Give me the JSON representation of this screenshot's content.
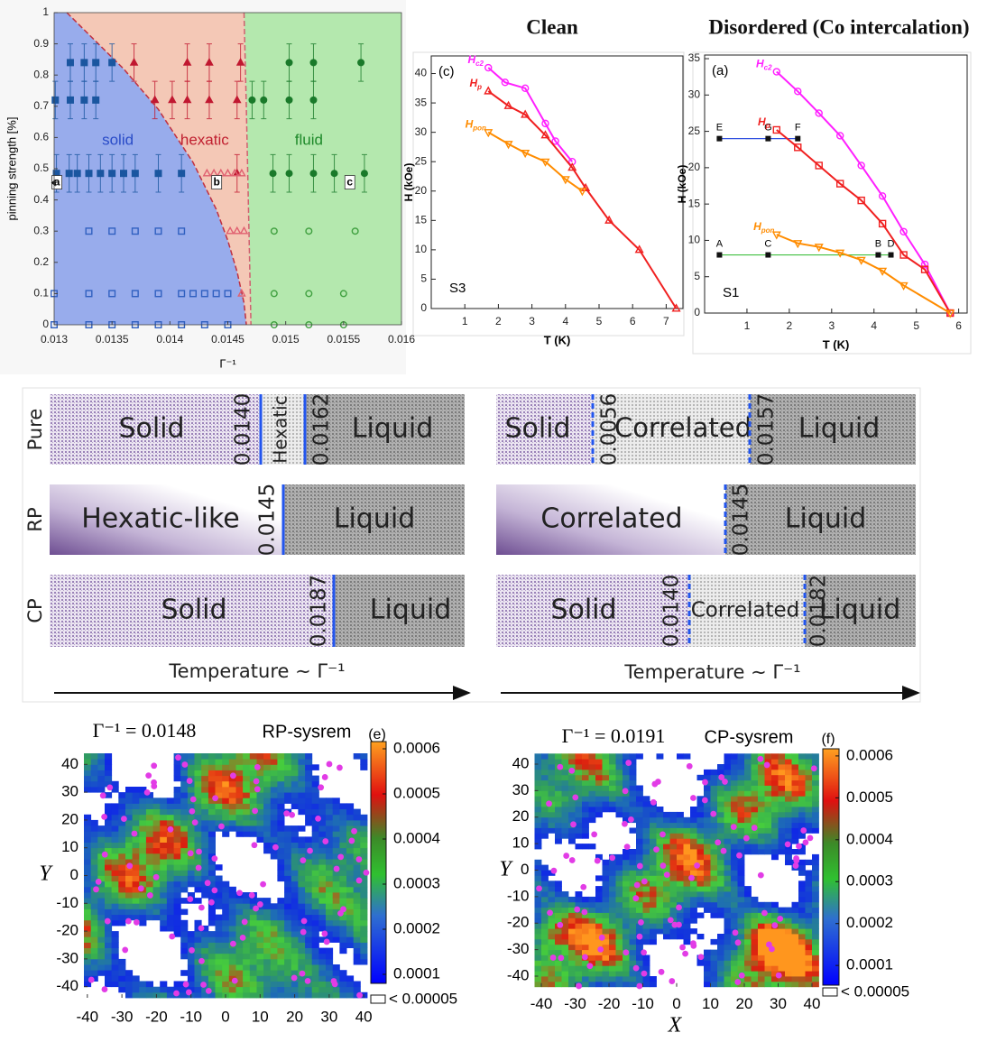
{
  "chart_data": [
    {
      "type": "scatter",
      "xlabel": "Γ⁻¹",
      "ylabel": "pinning strength [%]",
      "xlim": [
        0.013,
        0.016
      ],
      "ylim": [
        0,
        1
      ],
      "xticks": [
        0.013,
        0.0135,
        0.014,
        0.0145,
        0.015,
        0.0155,
        0.016
      ],
      "yticks": [
        0,
        0.1,
        0.2,
        0.3,
        0.4,
        0.5,
        0.6,
        0.7,
        0.8,
        0.9,
        1
      ],
      "regions": [
        {
          "label": "solid",
          "color": "#98acec",
          "label_color": "#2a4cc8"
        },
        {
          "label": "hexatic",
          "color": "#f4c8b6",
          "label_color": "#c02030"
        },
        {
          "label": "fluid",
          "color": "#b4e8ae",
          "label_color": "#1e8a2a"
        }
      ],
      "boundaries": [
        {
          "color": "#c03040",
          "x": [
            0.01311,
            0.0133,
            0.0136,
            0.0139,
            0.0142,
            0.0144,
            0.0145,
            0.01458,
            0.01464,
            0.01466
          ],
          "y": [
            1,
            0.93,
            0.82,
            0.69,
            0.52,
            0.37,
            0.27,
            0.17,
            0.07,
            0
          ]
        },
        {
          "color": "#d06070",
          "x": [
            0.01464,
            0.01466,
            0.01468,
            0.0147
          ],
          "y": [
            1,
            0.7,
            0.35,
            0
          ]
        }
      ],
      "series": [
        {
          "color": "#1a56a0",
          "marker": "square",
          "filled": true,
          "x": [
            0.01314,
            0.01326,
            0.01336,
            0.0135,
            0.01301,
            0.01314,
            0.01326,
            0.01336,
            0.01302,
            0.01313,
            0.0132,
            0.0133,
            0.0134,
            0.0135,
            0.0136,
            0.0137,
            0.0139,
            0.0141
          ],
          "values": [
            0.84,
            0.84,
            0.84,
            0.84,
            0.72,
            0.72,
            0.72,
            0.72,
            0.485,
            0.485,
            0.485,
            0.485,
            0.485,
            0.485,
            0.485,
            0.485,
            0.485,
            0.485
          ],
          "errors": [
            0.06,
            0.06,
            0.06,
            0.06,
            0.06,
            0.06,
            0.06,
            0.06,
            0.06,
            0.06,
            0.06,
            0.06,
            0.06,
            0.06,
            0.06,
            0.06,
            0.06,
            0.06
          ]
        },
        {
          "color": "#c01830",
          "marker": "triangle",
          "filled": true,
          "x": [
            0.01369,
            0.01415,
            0.01434,
            0.01461,
            0.01387,
            0.01402,
            0.01415,
            0.01434,
            0.01458,
            0.01458
          ],
          "values": [
            0.84,
            0.84,
            0.84,
            0.84,
            0.72,
            0.72,
            0.72,
            0.72,
            0.72,
            0.485
          ],
          "errors": [
            0.06,
            0.06,
            0.06,
            0.06,
            0.06,
            0.06,
            0.06,
            0.06,
            0.06,
            0.06
          ]
        },
        {
          "color": "#1a7a2a",
          "marker": "circle",
          "filled": true,
          "x": [
            0.01503,
            0.01524,
            0.01565,
            0.01471,
            0.01481,
            0.01503,
            0.01524,
            0.01489,
            0.01503,
            0.01524,
            0.01542,
            0.01568
          ],
          "values": [
            0.84,
            0.84,
            0.84,
            0.72,
            0.72,
            0.72,
            0.72,
            0.485,
            0.485,
            0.485,
            0.485,
            0.485
          ],
          "errors": [
            0.06,
            0.06,
            0.06,
            0.06,
            0.06,
            0.06,
            0.06,
            0.06,
            0.06,
            0.06,
            0.06,
            0.06
          ]
        },
        {
          "color": "#3060c0",
          "marker": "square",
          "filled": false,
          "x": [
            0.0133,
            0.0135,
            0.0137,
            0.0139,
            0.0141,
            0.013,
            0.0133,
            0.0135,
            0.0137,
            0.0139,
            0.0141,
            0.0142,
            0.0143,
            0.0144,
            0.0145,
            0.013,
            0.0133,
            0.0135,
            0.0137,
            0.0139,
            0.0141,
            0.0143,
            0.0145
          ],
          "values": [
            0.3,
            0.3,
            0.3,
            0.3,
            0.3,
            0.1,
            0.1,
            0.1,
            0.1,
            0.1,
            0.1,
            0.1,
            0.1,
            0.1,
            0.1,
            0,
            0,
            0,
            0,
            0,
            0,
            0,
            0
          ]
        },
        {
          "color": "#e06070",
          "marker": "triangle",
          "filled": false,
          "x": [
            0.01432,
            0.01438,
            0.01444,
            0.0145,
            0.01456,
            0.01462,
            0.01452,
            0.01458,
            0.01464,
            0.01462
          ],
          "values": [
            0.485,
            0.485,
            0.485,
            0.485,
            0.485,
            0.485,
            0.3,
            0.3,
            0.3,
            0.1
          ]
        },
        {
          "color": "#40a040",
          "marker": "circle",
          "filled": false,
          "x": [
            0.0149,
            0.0152,
            0.0156,
            0.0149,
            0.0152,
            0.0155,
            0.0149,
            0.0152,
            0.0155
          ],
          "values": [
            0.3,
            0.3,
            0.3,
            0.1,
            0.1,
            0.1,
            0,
            0,
            0
          ]
        }
      ],
      "annotations": [
        "a",
        "b",
        "c"
      ]
    },
    {
      "type": "line",
      "title": "Clean",
      "xlabel": "T (K)",
      "ylabel": "H (kOe)",
      "panel_label": "(c)",
      "sample_label": "S3",
      "xlim": [
        0,
        7.5
      ],
      "ylim": [
        0,
        43
      ],
      "xticks": [
        1,
        2,
        3,
        4,
        5,
        6,
        7
      ],
      "yticks": [
        0,
        5,
        10,
        15,
        20,
        25,
        30,
        35,
        40
      ],
      "series": [
        {
          "name": "Hc2",
          "color": "#ff20ff",
          "marker": "circle",
          "x": [
            1.7,
            2.2,
            2.8,
            3.4,
            3.7,
            4.2
          ],
          "values": [
            41,
            38.5,
            37.5,
            31.5,
            28.5,
            25
          ]
        },
        {
          "name": "Hp",
          "color": "#f02020",
          "marker": "triangle",
          "x": [
            1.7,
            2.3,
            2.8,
            3.4,
            4.2,
            4.6,
            5.3,
            6.2,
            7.3
          ],
          "values": [
            37,
            34.5,
            33,
            29.5,
            24,
            20.5,
            15,
            10,
            0
          ]
        },
        {
          "name": "Hpon",
          "color": "#ff8c00",
          "marker": "tridown",
          "x": [
            1.7,
            2.3,
            2.8,
            3.4,
            4.0,
            4.5
          ],
          "values": [
            30,
            28,
            26.5,
            25,
            22,
            20
          ]
        }
      ]
    },
    {
      "type": "line",
      "title": "Disordered (Co intercalation)",
      "xlabel": "T (K)",
      "ylabel": "H (kOe)",
      "panel_label": "(a)",
      "sample_label": "S1",
      "xlim": [
        0,
        6.2
      ],
      "ylim": [
        0,
        35.5
      ],
      "xticks": [
        1,
        2,
        3,
        4,
        5,
        6
      ],
      "yticks": [
        0,
        5,
        10,
        15,
        20,
        25,
        30,
        35
      ],
      "series": [
        {
          "name": "Hc2",
          "color": "#ff20ff",
          "marker": "circle",
          "x": [
            1.7,
            2.2,
            2.7,
            3.2,
            3.7,
            4.2,
            4.7,
            5.2,
            5.8
          ],
          "values": [
            33.2,
            30.5,
            27.5,
            24.4,
            20.3,
            16.1,
            11.2,
            6.7,
            0
          ]
        },
        {
          "name": "Hp",
          "color": "#f02020",
          "marker": "square",
          "x": [
            1.7,
            2.2,
            2.7,
            3.2,
            3.7,
            4.2,
            4.7,
            5.2,
            5.8
          ],
          "values": [
            25.2,
            22.8,
            20.3,
            17.8,
            15.5,
            12.3,
            8,
            6,
            0
          ]
        },
        {
          "name": "Hpon",
          "color": "#ff8c00",
          "marker": "tridown",
          "x": [
            1.7,
            2.2,
            2.7,
            3.2,
            3.7,
            4.2,
            4.7,
            5.8
          ],
          "values": [
            10.8,
            9.6,
            9.1,
            8.3,
            7.3,
            5.8,
            3.8,
            0
          ]
        }
      ],
      "guides": [
        {
          "color": "#3050e0",
          "y": 24,
          "x": [
            0.35,
            1.5,
            2.2
          ],
          "labels": [
            "E",
            "G",
            "F"
          ]
        },
        {
          "color": "#40c040",
          "y": 8,
          "x": [
            0.35,
            1.5,
            4.1,
            4.4
          ],
          "labels": [
            "A",
            "C",
            "B",
            "D"
          ]
        }
      ]
    },
    {
      "type": "heatmap",
      "title": "Γ⁻¹ = 0.0148",
      "label": "RP-sysrem",
      "panel_label": "(e)",
      "ylabel": "Y",
      "xlim": [
        -41,
        41
      ],
      "ylim": [
        -44,
        44
      ],
      "xticks": [
        -40,
        -30,
        -20,
        -10,
        0,
        10,
        20,
        30,
        40
      ],
      "yticks": [
        -40,
        -30,
        -20,
        -10,
        0,
        10,
        20,
        30,
        40
      ],
      "clim": [
        8e-05,
        0.000616
      ],
      "colorbar_ticks": [
        0.0001,
        0.0002,
        0.0003,
        0.0004,
        0.0005,
        0.0006
      ],
      "under_label": "< 0.00005"
    },
    {
      "type": "heatmap",
      "title": "Γ⁻¹ = 0.0191",
      "label": "CP-sysrem",
      "panel_label": "(f)",
      "xlabel": "X",
      "ylabel": "Y",
      "xlim": [
        -42,
        42
      ],
      "ylim": [
        -44,
        44
      ],
      "xticks": [
        -40,
        -30,
        -20,
        -10,
        0,
        10,
        20,
        30,
        40
      ],
      "yticks": [
        -40,
        -30,
        -20,
        -10,
        0,
        10,
        20,
        30,
        40
      ],
      "clim": [
        5.3e-05,
        0.000617
      ],
      "colorbar_ticks": [
        0.0001,
        0.0002,
        0.0003,
        0.0004,
        0.0005,
        0.0006
      ],
      "under_label": "< 0.00005"
    }
  ],
  "phase_bars": {
    "axis_label": "Temperature ∼ Γ⁻¹",
    "rows": [
      "Pure",
      "RP",
      "CP"
    ],
    "panels": [
      {
        "rows": [
          {
            "segments": [
              "Solid",
              "Hexatic",
              "Liquid"
            ],
            "boundaries": [
              "0.0140",
              "0.0162"
            ]
          },
          {
            "segments": [
              "Hexatic-like",
              "Liquid"
            ],
            "boundaries": [
              "0.0145"
            ]
          },
          {
            "segments": [
              "Solid",
              "Liquid"
            ],
            "boundaries": [
              "0.0187"
            ]
          }
        ]
      },
      {
        "rows": [
          {
            "segments": [
              "Solid",
              "Correlated",
              "Liquid"
            ],
            "boundaries": [
              "0.0056",
              "0.0157"
            ]
          },
          {
            "segments": [
              "Correlated",
              "Liquid"
            ],
            "boundaries": [
              "0.0145"
            ]
          },
          {
            "segments": [
              "Solid",
              "Correlated",
              "Liquid"
            ],
            "boundaries": [
              "0.0140",
              "0.0182"
            ]
          }
        ]
      }
    ]
  }
}
